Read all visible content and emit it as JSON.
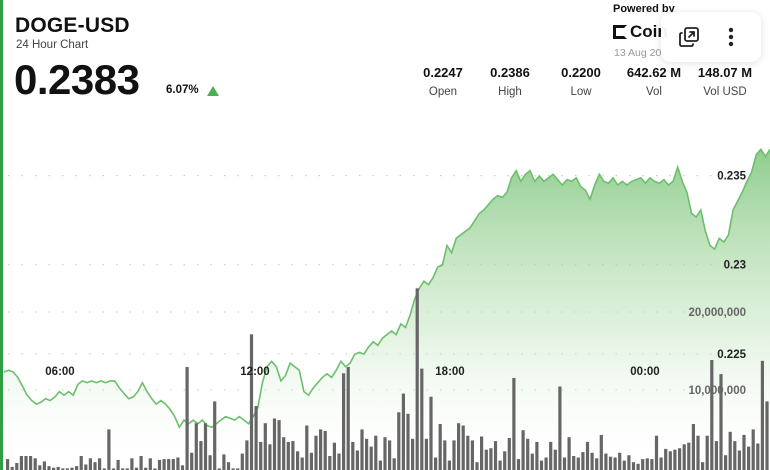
{
  "header": {
    "symbol": "DOGE-USD",
    "subtitle": "24 Hour Chart",
    "price": "0.2383",
    "change_percent": "6.07%"
  },
  "stats": [
    {
      "value": "0.2247",
      "label": "Open"
    },
    {
      "value": "0.2386",
      "label": "High"
    },
    {
      "value": "0.2200",
      "label": "Low"
    },
    {
      "value": "642.62 M",
      "label": "Vol"
    },
    {
      "value": "148.07 M",
      "label": "Vol USD"
    }
  ],
  "attribution": {
    "powered_by": "Powered by",
    "brand": "Coin",
    "date": "13 Aug 20"
  },
  "toolbar": {
    "expand_icon": "external-window-icon",
    "menu_icon": "vertical-ellipsis-icon"
  },
  "colors": {
    "accent": "#4caf50",
    "line": "#6cbf6c",
    "area_top": "#7cc47a",
    "bar": "#666666",
    "left_border": "#2f9e44"
  },
  "chart_data": {
    "type": "area",
    "title": "",
    "xlabel": "",
    "ylabel": "",
    "x_ticks": [
      "06:00",
      "12:00",
      "18:00",
      "00:00"
    ],
    "y_ticks": [
      0.225,
      0.23,
      0.235
    ],
    "y_tick_labels": [
      "0.225",
      "0.23",
      "0.235"
    ],
    "ylim": [
      0.2196,
      0.2402
    ],
    "grid": true,
    "series": [
      {
        "values": [
          0.2251,
          0.2252,
          0.2251,
          0.2248,
          0.2243,
          0.2238,
          0.2235,
          0.2233,
          0.2234,
          0.2236,
          0.2235,
          0.2237,
          0.224,
          0.2238,
          0.224,
          0.2238,
          0.2244,
          0.2246,
          0.2245,
          0.2246,
          0.2245,
          0.2246,
          0.2245,
          0.2246,
          0.2246,
          0.2242,
          0.2239,
          0.2236,
          0.2237,
          0.224,
          0.2245,
          0.224,
          0.2236,
          0.2233,
          0.2235,
          0.2233,
          0.223,
          0.2226,
          0.222,
          0.2224,
          0.2222,
          0.2224,
          0.2222,
          0.2224,
          0.2221,
          0.222,
          0.2222,
          0.2224,
          0.2226,
          0.2225,
          0.2224,
          0.2226,
          0.2224,
          0.2222,
          0.2226,
          0.2231,
          0.2245,
          0.2254,
          0.2257,
          0.2254,
          0.2246,
          0.2249,
          0.2256,
          0.2254,
          0.2252,
          0.224,
          0.2238,
          0.2242,
          0.2245,
          0.2248,
          0.225,
          0.2248,
          0.2252,
          0.2257,
          0.2254,
          0.2256,
          0.2261,
          0.2262,
          0.2261,
          0.2265,
          0.2268,
          0.2266,
          0.227,
          0.2272,
          0.2274,
          0.2272,
          0.2278,
          0.2276,
          0.2283,
          0.2292,
          0.2298,
          0.2302,
          0.23,
          0.2304,
          0.231,
          0.2311,
          0.2322,
          0.2318,
          0.2326,
          0.2328,
          0.233,
          0.2332,
          0.2336,
          0.234,
          0.2342,
          0.2345,
          0.2348,
          0.235,
          0.2349,
          0.2352,
          0.236,
          0.2364,
          0.2358,
          0.2362,
          0.2364,
          0.2358,
          0.2361,
          0.2358,
          0.236,
          0.2362,
          0.2359,
          0.2356,
          0.2359,
          0.2358,
          0.236,
          0.2355,
          0.2353,
          0.2348,
          0.2356,
          0.2362,
          0.2358,
          0.2357,
          0.236,
          0.2356,
          0.2358,
          0.2356,
          0.2358,
          0.2359,
          0.236,
          0.2357,
          0.236,
          0.2358,
          0.2357,
          0.2359,
          0.2356,
          0.2358,
          0.2366,
          0.2358,
          0.2352,
          0.234,
          0.2338,
          0.2342,
          0.233,
          0.2322,
          0.232,
          0.2326,
          0.2324,
          0.2328,
          0.2342,
          0.2347,
          0.2352,
          0.2358,
          0.2363,
          0.2373,
          0.2376,
          0.2372,
          0.2376
        ]
      },
      {
        "name": "Volume",
        "type": "bar",
        "scale_ticks": [
          10000000,
          20000000
        ],
        "scale_labels": [
          "10,000,000",
          "20,000,000"
        ],
        "values": [
          1400000,
          400000,
          900000,
          1800000,
          1800000,
          1800000,
          1500000,
          600000,
          1100000,
          500000,
          300000,
          400000,
          200000,
          200000,
          300000,
          500000,
          1800000,
          700000,
          1500000,
          1000000,
          1500000,
          200000,
          5200000,
          200000,
          1300000,
          200000,
          200000,
          1500000,
          300000,
          1800000,
          300000,
          1500000,
          200000,
          1300000,
          1400000,
          1400000,
          1400000,
          1600000,
          600000,
          13200000,
          2200000,
          6000000,
          3700000,
          6000000,
          1900000,
          8800000,
          200000,
          2000000,
          1000000,
          200000,
          200000,
          2100000,
          3800000,
          17400000,
          8200000,
          3600000,
          6000000,
          3300000,
          6600000,
          6400000,
          4200000,
          3600000,
          3700000,
          2400000,
          1600000,
          5700000,
          2200000,
          4400000,
          5200000,
          5000000,
          1800000,
          3500000,
          2100000,
          12400000,
          13200000,
          3600000,
          2500000,
          5200000,
          4000000,
          3000000,
          4400000,
          1200000,
          4200000,
          3800000,
          1500000,
          7400000,
          9800000,
          7200000,
          4000000,
          23300000,
          13000000,
          4000000,
          9400000,
          1600000,
          5900000,
          3800000,
          1200000,
          3800000,
          6000000,
          5700000,
          4400000,
          3800000,
          1000000,
          4300000,
          2600000,
          2800000,
          3700000,
          1200000,
          2400000,
          4100000,
          11800000,
          1400000,
          5100000,
          4000000,
          2100000,
          3600000,
          1200000,
          1600000,
          3600000,
          2600000,
          10700000,
          1600000,
          4200000,
          1800000,
          1600000,
          2300000,
          3600000,
          2200000,
          1500000,
          4500000,
          2100000,
          1700000,
          1600000,
          2200000,
          1200000,
          1900000,
          1000000,
          800000,
          1400000,
          1500000,
          1400000,
          4400000,
          1600000,
          2700000,
          2400000,
          2600000,
          2800000,
          3300000,
          3500000,
          5900000,
          4400000,
          1000000,
          4400000,
          14100000,
          3700000,
          12300000,
          1900000,
          4900000,
          3700000,
          2500000,
          4500000,
          3000000,
          5200000,
          3400000,
          14000000,
          8800000
        ]
      }
    ]
  }
}
